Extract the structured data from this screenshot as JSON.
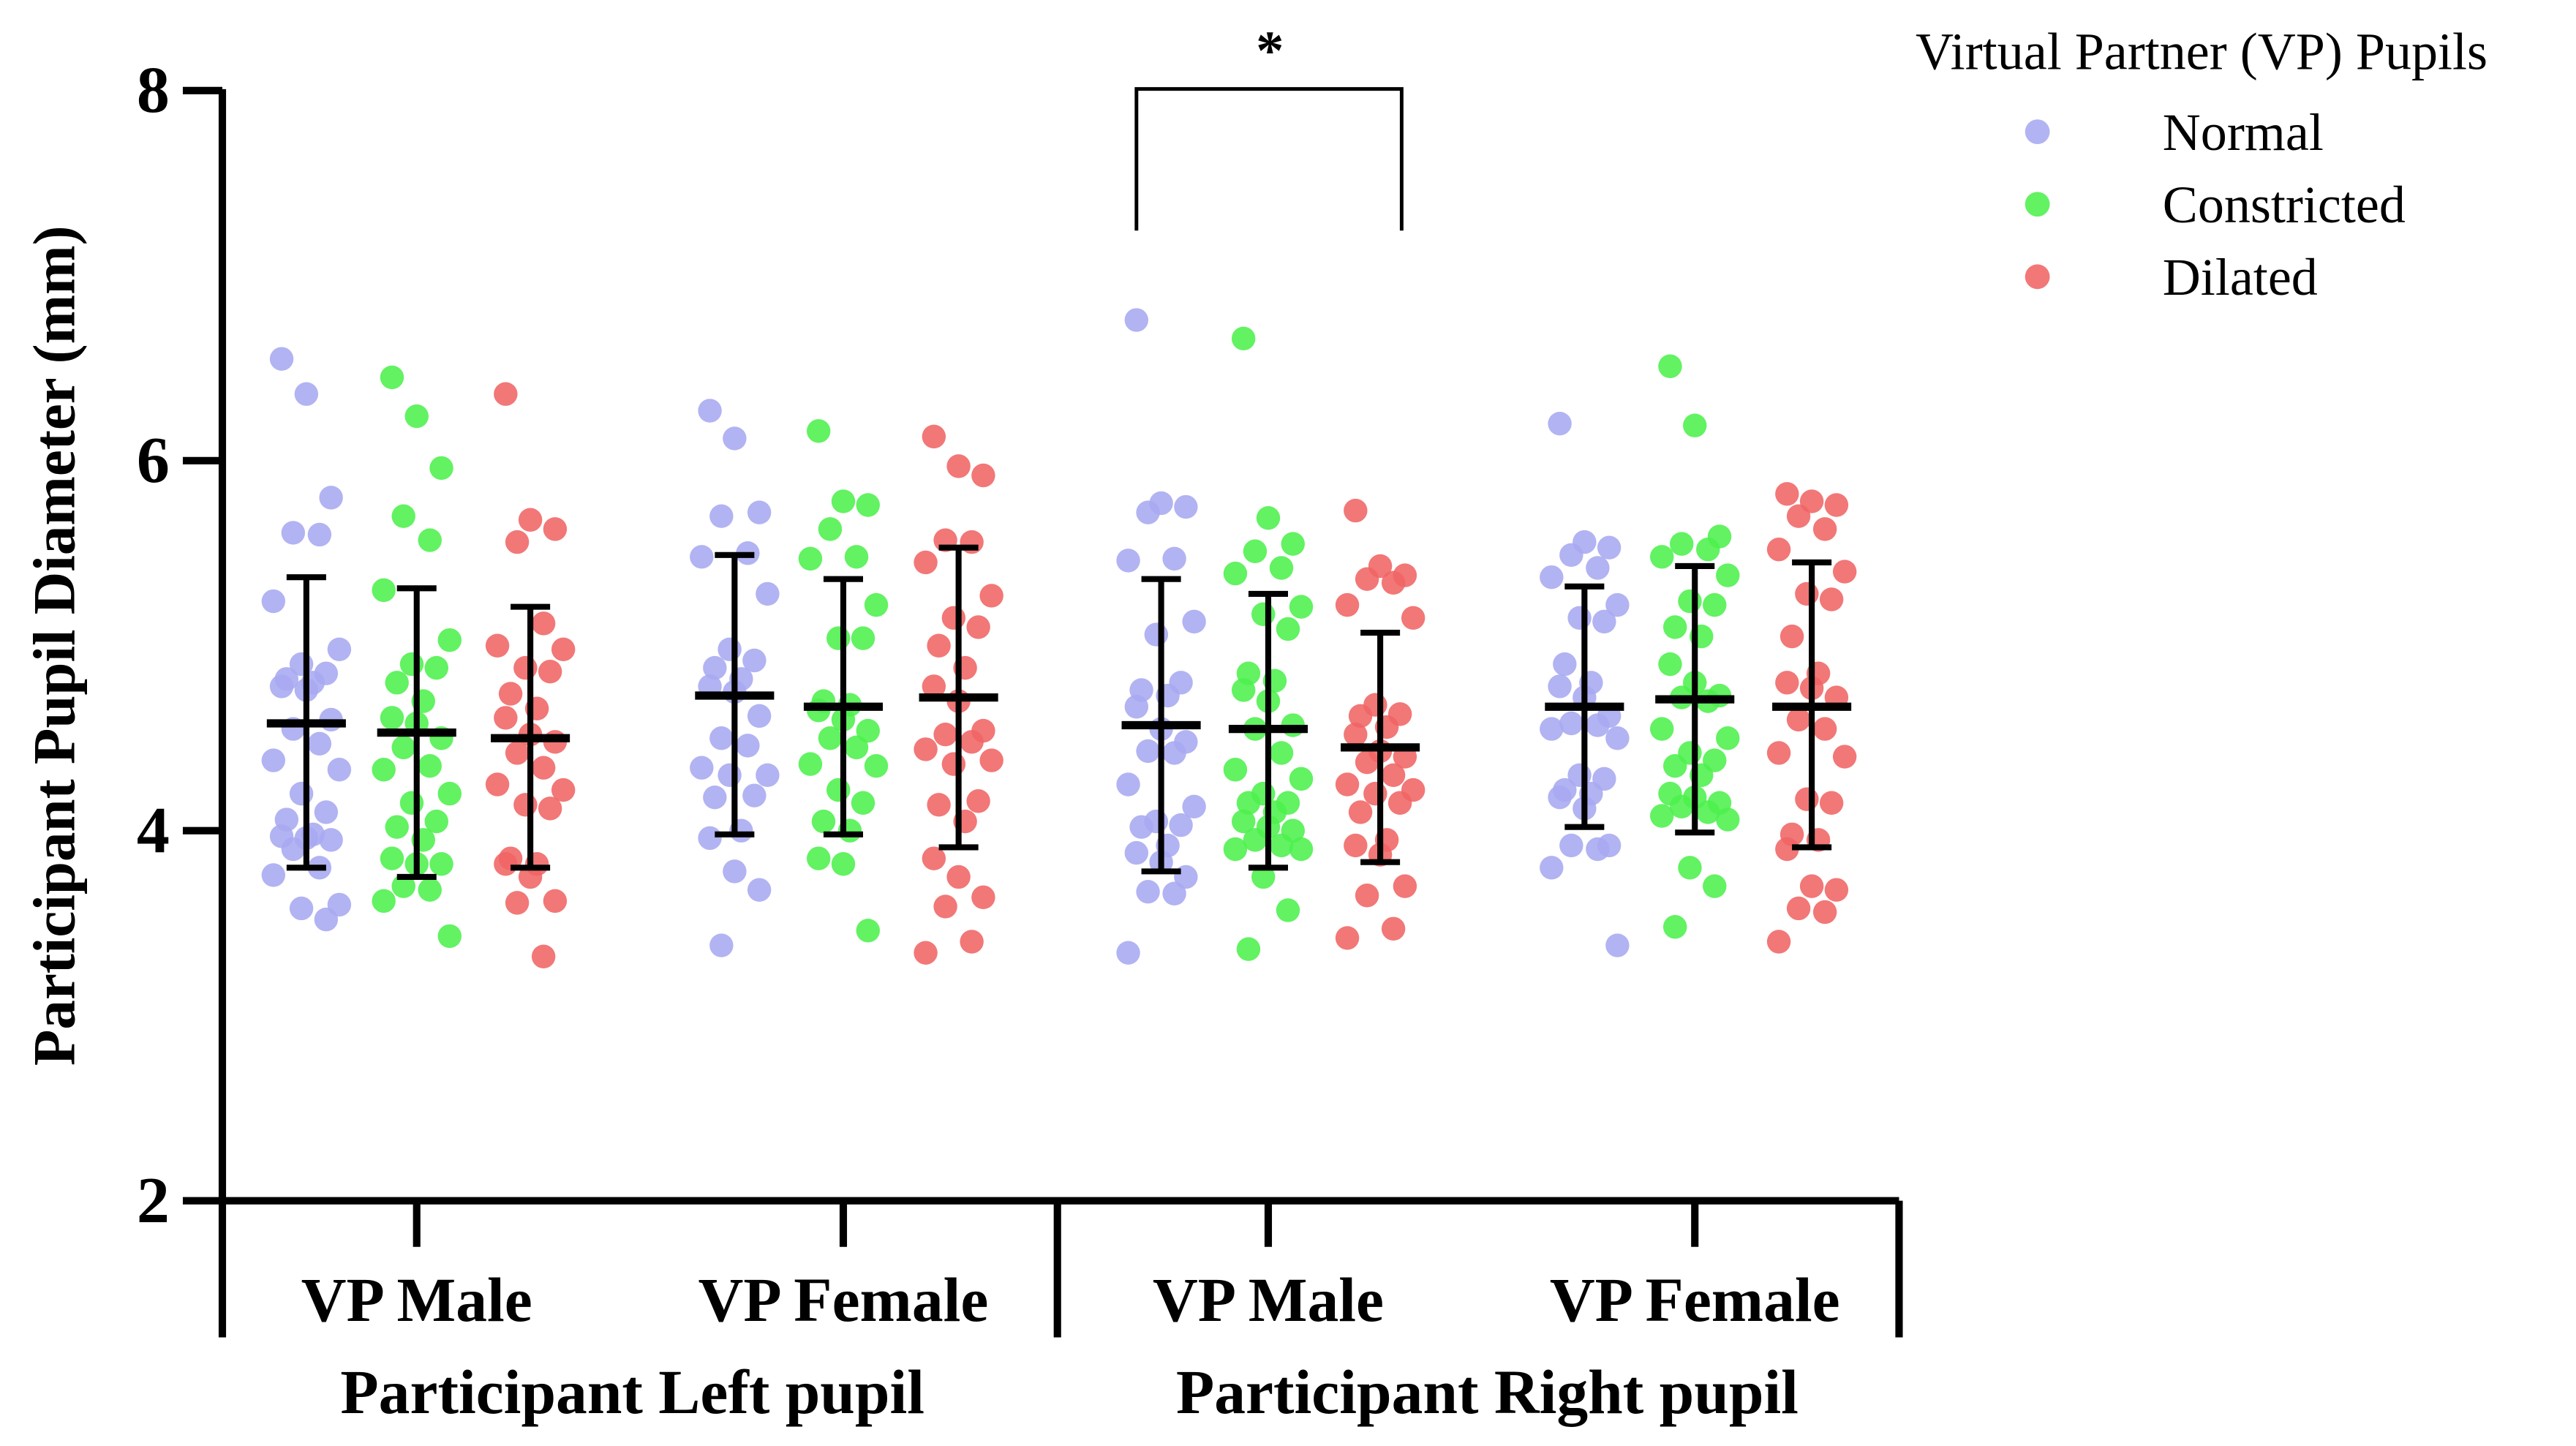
{
  "chart_data": {
    "type": "scatter",
    "subtype": "grouped dot plot with mean and SD error bars",
    "ylabel": "Participant Pupil Diameter (mm)",
    "ylim": [
      2,
      8
    ],
    "yticks": [
      2,
      4,
      6,
      8
    ],
    "group_labels": [
      "Participant Left pupil",
      "Participant Right pupil"
    ],
    "category_labels": [
      "VP Male",
      "VP Female",
      "VP Male",
      "VP Female"
    ],
    "legend": {
      "title": "Virtual Partner (VP) Pupils",
      "entries": [
        "Normal",
        "Constricted",
        "Dilated"
      ]
    },
    "colors": {
      "Normal": "#a7a9f0",
      "Constricted": "#4cf04c",
      "Dilated": "#f06464"
    },
    "significance": {
      "label": "*",
      "between": [
        "Right pupil / VP Male / Normal",
        "Right pupil / VP Male / Dilated"
      ]
    },
    "series": [
      {
        "group": "Participant Left pupil",
        "category": "VP Male",
        "name": "Normal",
        "mean": 4.58,
        "sd_low": 3.8,
        "sd_high": 5.37,
        "values": [
          6.55,
          6.36,
          5.8,
          5.61,
          5.6,
          5.24,
          4.98,
          4.9,
          4.85,
          4.82,
          4.8,
          4.78,
          4.76,
          4.6,
          4.55,
          4.47,
          4.38,
          4.33,
          4.2,
          4.1,
          4.06,
          3.98,
          3.97,
          3.96,
          3.95,
          3.9,
          3.8,
          3.76,
          3.6,
          3.58,
          3.52
        ]
      },
      {
        "group": "Participant Left pupil",
        "category": "VP Male",
        "name": "Constricted",
        "mean": 4.53,
        "sd_low": 3.75,
        "sd_high": 5.31,
        "values": [
          6.45,
          6.24,
          5.96,
          5.7,
          5.57,
          5.3,
          5.03,
          4.9,
          4.88,
          4.8,
          4.7,
          4.61,
          4.58,
          4.5,
          4.45,
          4.35,
          4.33,
          4.2,
          4.15,
          4.05,
          4.02,
          3.95,
          3.85,
          3.82,
          3.82,
          3.7,
          3.68,
          3.62,
          3.43
        ]
      },
      {
        "group": "Participant Left pupil",
        "category": "VP Male",
        "name": "Dilated",
        "mean": 4.5,
        "sd_low": 3.8,
        "sd_high": 5.21,
        "values": [
          6.36,
          5.68,
          5.63,
          5.56,
          5.12,
          5.0,
          4.98,
          4.88,
          4.86,
          4.74,
          4.66,
          4.61,
          4.52,
          4.48,
          4.42,
          4.34,
          4.25,
          4.22,
          4.14,
          4.12,
          3.85,
          3.82,
          3.82,
          3.75,
          3.62,
          3.61,
          3.32
        ]
      },
      {
        "group": "Participant Left pupil",
        "category": "VP Female",
        "name": "Normal",
        "mean": 4.73,
        "sd_low": 3.98,
        "sd_high": 5.49,
        "values": [
          6.27,
          6.12,
          5.72,
          5.7,
          5.5,
          5.48,
          5.28,
          4.98,
          4.92,
          4.88,
          4.82,
          4.78,
          4.75,
          4.62,
          4.5,
          4.46,
          4.34,
          4.3,
          4.3,
          4.19,
          4.18,
          4.0,
          3.96,
          3.78,
          3.68,
          3.38
        ]
      },
      {
        "group": "Participant Left pupil",
        "category": "VP Female",
        "name": "Constricted",
        "mean": 4.67,
        "sd_low": 3.98,
        "sd_high": 5.36,
        "values": [
          6.16,
          5.78,
          5.76,
          5.63,
          5.48,
          5.47,
          5.22,
          5.04,
          5.04,
          4.7,
          4.68,
          4.65,
          4.6,
          4.54,
          4.5,
          4.45,
          4.36,
          4.35,
          4.22,
          4.15,
          4.05,
          4.0,
          3.85,
          3.82,
          3.46
        ]
      },
      {
        "group": "Participant Left pupil",
        "category": "VP Female",
        "name": "Dilated",
        "mean": 4.72,
        "sd_low": 3.91,
        "sd_high": 5.53,
        "values": [
          6.13,
          5.97,
          5.92,
          5.57,
          5.56,
          5.45,
          5.27,
          5.15,
          5.1,
          5.0,
          4.88,
          4.78,
          4.7,
          4.54,
          4.52,
          4.48,
          4.44,
          4.38,
          4.36,
          4.16,
          4.14,
          4.05,
          3.85,
          3.75,
          3.64,
          3.59,
          3.4,
          3.34
        ]
      },
      {
        "group": "Participant Right pupil",
        "category": "VP Male",
        "name": "Normal",
        "mean": 4.57,
        "sd_low": 3.78,
        "sd_high": 5.36,
        "values": [
          6.76,
          5.77,
          5.75,
          5.72,
          5.47,
          5.46,
          5.13,
          5.06,
          4.8,
          4.76,
          4.73,
          4.67,
          4.55,
          4.48,
          4.43,
          4.42,
          4.25,
          4.13,
          4.05,
          4.03,
          4.02,
          3.92,
          3.88,
          3.83,
          3.75,
          3.67,
          3.66,
          3.34
        ]
      },
      {
        "group": "Participant Right pupil",
        "category": "VP Male",
        "name": "Constricted",
        "mean": 4.55,
        "sd_low": 3.8,
        "sd_high": 5.28,
        "values": [
          6.66,
          5.69,
          5.55,
          5.51,
          5.42,
          5.39,
          5.21,
          5.17,
          5.09,
          4.85,
          4.81,
          4.76,
          4.7,
          4.57,
          4.55,
          4.42,
          4.33,
          4.28,
          4.2,
          4.15,
          4.15,
          4.1,
          4.05,
          4.02,
          4.0,
          3.95,
          3.92,
          3.9,
          3.9,
          3.75,
          3.57,
          3.36
        ]
      },
      {
        "group": "Participant Right pupil",
        "category": "VP Male",
        "name": "Dilated",
        "mean": 4.45,
        "sd_low": 3.83,
        "sd_high": 5.07,
        "values": [
          5.73,
          5.43,
          5.38,
          5.36,
          5.34,
          5.22,
          5.15,
          4.68,
          4.63,
          4.62,
          4.56,
          4.52,
          4.43,
          4.4,
          4.37,
          4.3,
          4.25,
          4.22,
          4.2,
          4.15,
          4.1,
          3.95,
          3.92,
          3.87,
          3.7,
          3.65,
          3.47,
          3.42
        ]
      },
      {
        "group": "Participant Right pupil",
        "category": "VP Female",
        "name": "Normal",
        "mean": 4.67,
        "sd_low": 4.02,
        "sd_high": 5.32,
        "values": [
          6.2,
          5.56,
          5.53,
          5.49,
          5.42,
          5.37,
          5.22,
          5.15,
          5.13,
          4.9,
          4.8,
          4.78,
          4.72,
          4.62,
          4.58,
          4.57,
          4.55,
          4.5,
          4.3,
          4.28,
          4.22,
          4.2,
          4.18,
          4.12,
          3.92,
          3.92,
          3.9,
          3.8,
          3.38
        ]
      },
      {
        "group": "Participant Right pupil",
        "category": "VP Female",
        "name": "Constricted",
        "mean": 4.71,
        "sd_low": 3.99,
        "sd_high": 5.43,
        "values": [
          6.51,
          6.19,
          5.59,
          5.55,
          5.52,
          5.48,
          5.38,
          5.24,
          5.22,
          5.1,
          5.05,
          4.9,
          4.8,
          4.73,
          4.72,
          4.7,
          4.55,
          4.5,
          4.42,
          4.38,
          4.35,
          4.3,
          4.2,
          4.18,
          4.15,
          4.13,
          4.1,
          4.08,
          4.06,
          3.8,
          3.7,
          3.48
        ]
      },
      {
        "group": "Participant Right pupil",
        "category": "VP Female",
        "name": "Dilated",
        "mean": 4.67,
        "sd_low": 3.91,
        "sd_high": 5.45,
        "values": [
          5.82,
          5.78,
          5.76,
          5.7,
          5.63,
          5.52,
          5.4,
          5.28,
          5.25,
          5.05,
          4.85,
          4.8,
          4.77,
          4.72,
          4.6,
          4.55,
          4.42,
          4.4,
          4.17,
          4.15,
          3.98,
          3.95,
          3.9,
          3.7,
          3.68,
          3.58,
          3.56,
          3.4
        ]
      }
    ]
  }
}
